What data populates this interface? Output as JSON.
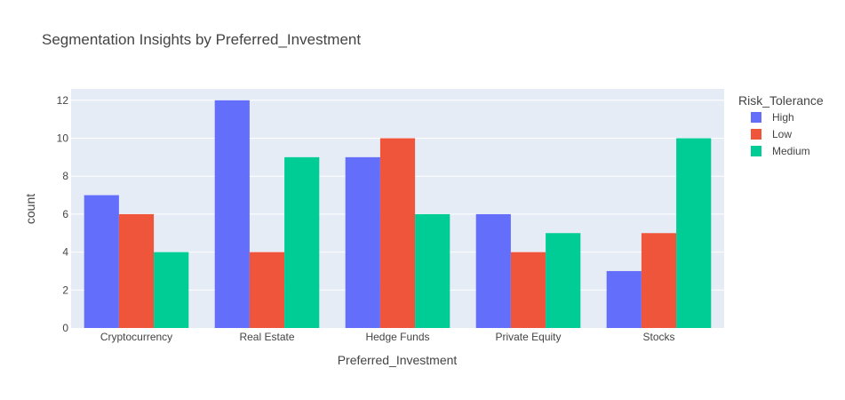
{
  "chart_data": {
    "type": "bar",
    "title": "Segmentation Insights by Preferred_Investment",
    "xlabel": "Preferred_Investment",
    "ylabel": "count",
    "categories": [
      "Cryptocurrency",
      "Real Estate",
      "Hedge Funds",
      "Private Equity",
      "Stocks"
    ],
    "series": [
      {
        "name": "High",
        "color": "#636efa",
        "values": [
          7,
          12,
          9,
          6,
          3
        ]
      },
      {
        "name": "Low",
        "color": "#ef553b",
        "values": [
          6,
          4,
          10,
          4,
          5
        ]
      },
      {
        "name": "Medium",
        "color": "#00cc96",
        "values": [
          4,
          9,
          6,
          5,
          10
        ]
      }
    ],
    "ylim": [
      0,
      12.6
    ],
    "yticks": [
      0,
      2,
      4,
      6,
      8,
      10,
      12
    ],
    "grid": true,
    "legend_title": "Risk_Tolerance",
    "legend_position": "right",
    "plot_bg": "#e5ecf6"
  }
}
